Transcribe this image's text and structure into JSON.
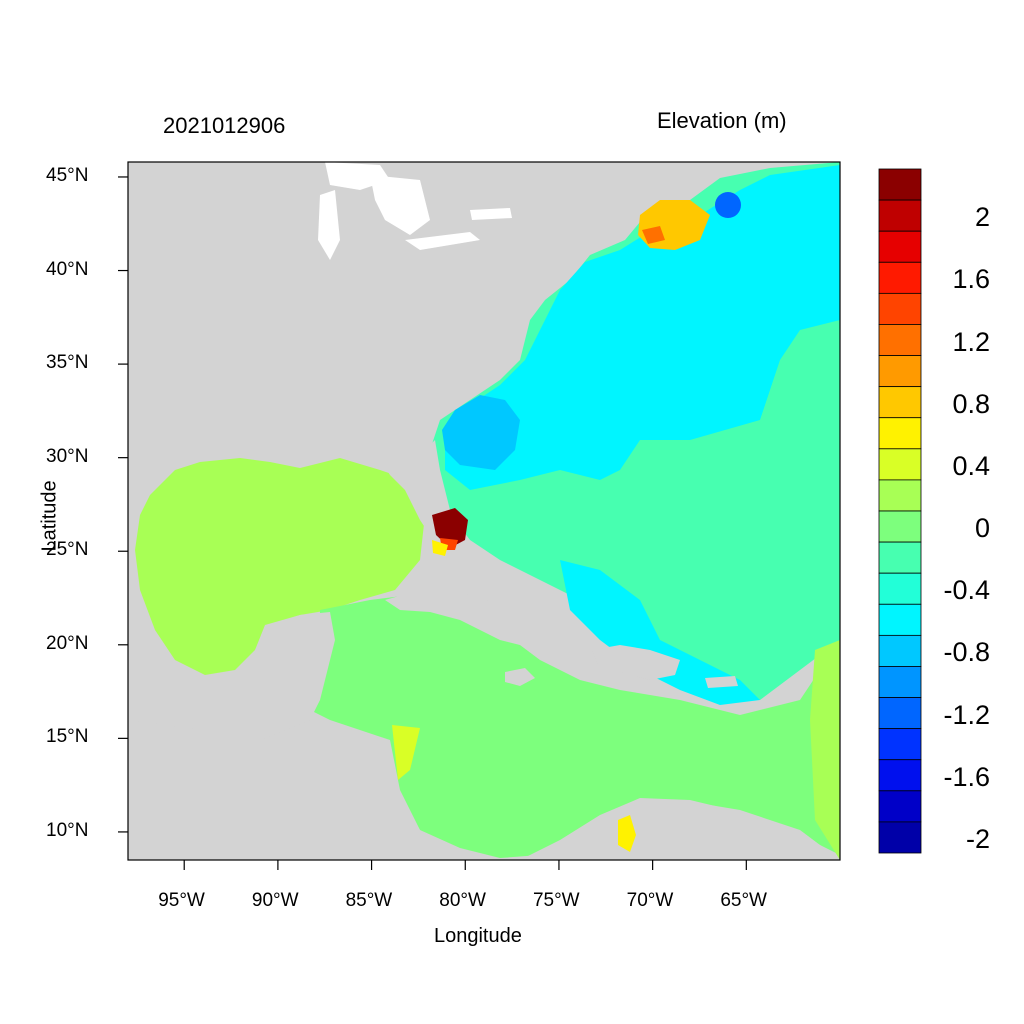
{
  "titles": {
    "left": "2021012906",
    "right": "Elevation (m)"
  },
  "axes": {
    "xlabel": "Longitude",
    "ylabel": "Latitude",
    "x_ticks": [
      "95°W",
      "90°W",
      "85°W",
      "80°W",
      "75°W",
      "70°W",
      "65°W"
    ],
    "x_tick_values": [
      -95,
      -90,
      -85,
      -80,
      -75,
      -70,
      -65
    ],
    "y_ticks": [
      "45°N",
      "40°N",
      "35°N",
      "30°N",
      "25°N",
      "20°N",
      "15°N",
      "10°N"
    ],
    "y_tick_values": [
      45,
      40,
      35,
      30,
      25,
      20,
      15,
      10
    ],
    "x_range": [
      -98,
      -60
    ],
    "y_range": [
      8.5,
      45.8
    ]
  },
  "colorbar": {
    "labels": [
      "2",
      "1.6",
      "1.2",
      "0.8",
      "0.4",
      "0",
      "-0.4",
      "-0.8",
      "-1.2",
      "-1.6",
      "-2"
    ],
    "colors": [
      "#8b0000",
      "#bf0000",
      "#e60000",
      "#ff1a00",
      "#ff4400",
      "#ff7000",
      "#ff9a00",
      "#ffc800",
      "#fff200",
      "#d9ff26",
      "#a8ff55",
      "#7dff7d",
      "#47ffb0",
      "#22ffd8",
      "#00f5ff",
      "#00c8ff",
      "#0095ff",
      "#0066ff",
      "#0033ff",
      "#0010ee",
      "#0000c8",
      "#0000a8"
    ]
  },
  "colors": {
    "land": "#d3d3d3",
    "lakes": "#ffffff",
    "gulf_mexico": "#a8ff55",
    "caribbean": "#7dff7d",
    "atlantic_main": "#47ffb0",
    "gulf_stream_band": "#00f5ff",
    "sargasso_low": "#00c8ff",
    "surge_high": "#8b0000"
  }
}
